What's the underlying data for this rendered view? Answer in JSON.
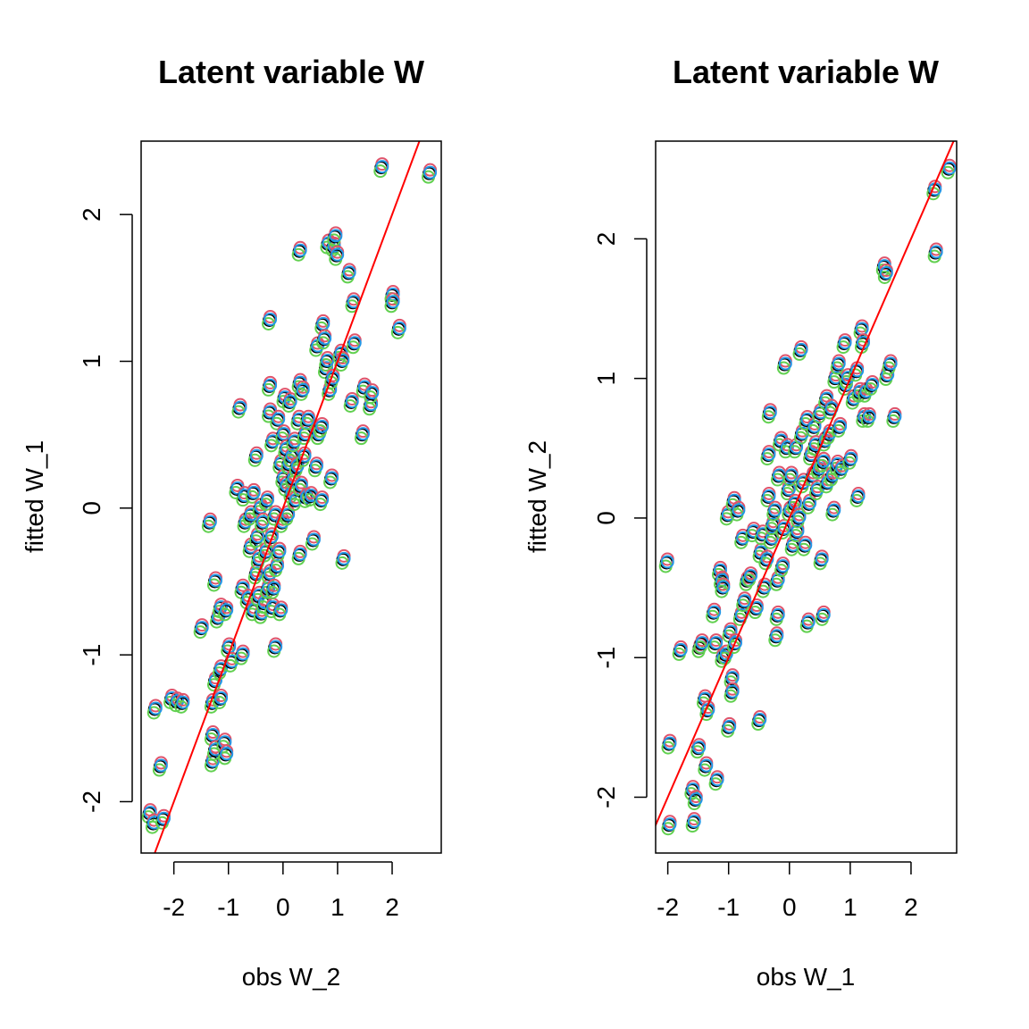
{
  "palette": [
    "#000000",
    "#DF536B",
    "#61D04F",
    "#2297E6"
  ],
  "fit_line_color": "#FF0000",
  "chart_data": [
    {
      "type": "scatter",
      "title": "Latent variable W",
      "xlabel": "obs W_2",
      "ylabel": "fitted W_1",
      "xlim": [
        -2.6,
        2.9
      ],
      "ylim": [
        -2.35,
        2.5
      ],
      "xticks": [
        -2,
        -1,
        0,
        1,
        2
      ],
      "yticks": [
        -2,
        -1,
        0,
        1,
        2
      ],
      "xtick_labels": [
        "-2",
        "-1",
        "0",
        "1",
        "2"
      ],
      "ytick_labels": [
        "-2",
        "-1",
        "0",
        "1",
        "2"
      ],
      "grid": false,
      "legend": "none",
      "reference_line": {
        "slope": 1.0,
        "intercept": 0.0
      },
      "points": [
        [
          -2.45,
          -2.08
        ],
        [
          -2.38,
          -2.15
        ],
        [
          -2.35,
          -1.37
        ],
        [
          -2.25,
          -1.76
        ],
        [
          -2.2,
          -2.12
        ],
        [
          -2.05,
          -1.3
        ],
        [
          -1.95,
          -1.32
        ],
        [
          -1.85,
          -1.33
        ],
        [
          -1.5,
          -0.82
        ],
        [
          -1.35,
          -0.1
        ],
        [
          -1.3,
          -1.33
        ],
        [
          -1.3,
          -1.55
        ],
        [
          -1.3,
          -1.73
        ],
        [
          -1.25,
          -1.18
        ],
        [
          -1.25,
          -1.65
        ],
        [
          -1.25,
          -0.5
        ],
        [
          -1.2,
          -0.75
        ],
        [
          -1.15,
          -0.68
        ],
        [
          -1.15,
          -1.3
        ],
        [
          -1.15,
          -1.1
        ],
        [
          -1.08,
          -1.6
        ],
        [
          -1.05,
          -1.68
        ],
        [
          -1.05,
          -0.7
        ],
        [
          -1.0,
          -0.95
        ],
        [
          -0.95,
          -1.05
        ],
        [
          -0.85,
          0.13
        ],
        [
          -0.8,
          0.68
        ],
        [
          -0.75,
          -1.0
        ],
        [
          -0.75,
          -0.55
        ],
        [
          -0.72,
          0.08
        ],
        [
          -0.7,
          -0.1
        ],
        [
          -0.65,
          -0.62
        ],
        [
          -0.6,
          -0.27
        ],
        [
          -0.6,
          -0.05
        ],
        [
          -0.55,
          0.1
        ],
        [
          -0.55,
          -0.7
        ],
        [
          -0.5,
          -0.45
        ],
        [
          -0.5,
          0.35
        ],
        [
          -0.48,
          -0.2
        ],
        [
          -0.45,
          -0.6
        ],
        [
          -0.45,
          -0.35
        ],
        [
          -0.42,
          0.0
        ],
        [
          -0.4,
          -0.72
        ],
        [
          -0.38,
          -0.1
        ],
        [
          -0.35,
          -0.65
        ],
        [
          -0.32,
          -0.3
        ],
        [
          -0.3,
          0.05
        ],
        [
          -0.28,
          -0.55
        ],
        [
          -0.25,
          0.83
        ],
        [
          -0.25,
          1.28
        ],
        [
          -0.25,
          0.65
        ],
        [
          -0.25,
          -0.45
        ],
        [
          -0.22,
          -0.2
        ],
        [
          -0.2,
          0.45
        ],
        [
          -0.2,
          -0.68
        ],
        [
          -0.18,
          -0.55
        ],
        [
          -0.15,
          -0.05
        ],
        [
          -0.15,
          -0.95
        ],
        [
          -0.12,
          -0.4
        ],
        [
          -0.1,
          0.6
        ],
        [
          -0.08,
          -0.3
        ],
        [
          -0.05,
          -0.7
        ],
        [
          -0.05,
          0.3
        ],
        [
          -0.02,
          -0.1
        ],
        [
          0.0,
          0.2
        ],
        [
          0.0,
          0.5
        ],
        [
          0.02,
          0.75
        ],
        [
          0.05,
          0.15
        ],
        [
          0.05,
          0.4
        ],
        [
          0.08,
          -0.05
        ],
        [
          0.1,
          0.3
        ],
        [
          0.12,
          0.72
        ],
        [
          0.15,
          0.1
        ],
        [
          0.15,
          0.35
        ],
        [
          0.18,
          0.2
        ],
        [
          0.2,
          0.45
        ],
        [
          0.22,
          0.05
        ],
        [
          0.25,
          0.28
        ],
        [
          0.28,
          0.6
        ],
        [
          0.3,
          0.85
        ],
        [
          0.3,
          1.75
        ],
        [
          0.3,
          -0.32
        ],
        [
          0.32,
          0.15
        ],
        [
          0.35,
          0.8
        ],
        [
          0.38,
          0.35
        ],
        [
          0.4,
          0.5
        ],
        [
          0.42,
          0.07
        ],
        [
          0.45,
          0.6
        ],
        [
          0.5,
          0.08
        ],
        [
          0.55,
          -0.22
        ],
        [
          0.6,
          0.28
        ],
        [
          0.62,
          1.1
        ],
        [
          0.65,
          0.5
        ],
        [
          0.7,
          0.55
        ],
        [
          0.7,
          0.05
        ],
        [
          0.72,
          1.25
        ],
        [
          0.75,
          1.15
        ],
        [
          0.78,
          0.95
        ],
        [
          0.8,
          1.0
        ],
        [
          0.82,
          1.8
        ],
        [
          0.85,
          0.8
        ],
        [
          0.88,
          0.2
        ],
        [
          0.9,
          0.88
        ],
        [
          0.92,
          1.78
        ],
        [
          0.95,
          1.85
        ],
        [
          0.98,
          1.72
        ],
        [
          1.05,
          1.05
        ],
        [
          1.08,
          1.0
        ],
        [
          1.1,
          -0.35
        ],
        [
          1.2,
          1.6
        ],
        [
          1.25,
          0.72
        ],
        [
          1.28,
          1.4
        ],
        [
          1.3,
          1.12
        ],
        [
          1.45,
          0.5
        ],
        [
          1.48,
          0.82
        ],
        [
          1.6,
          0.7
        ],
        [
          1.62,
          0.78
        ],
        [
          1.8,
          2.32
        ],
        [
          2.0,
          1.45
        ],
        [
          2.0,
          1.4
        ],
        [
          2.12,
          1.22
        ],
        [
          2.68,
          2.28
        ]
      ]
    },
    {
      "type": "scatter",
      "title": "Latent variable W",
      "xlabel": "obs W_1",
      "ylabel": "fitted W_2",
      "xlim": [
        -2.2,
        2.75
      ],
      "ylim": [
        -2.4,
        2.7
      ],
      "xticks": [
        -2,
        -1,
        0,
        1,
        2
      ],
      "yticks": [
        -2,
        -1,
        0,
        1,
        2
      ],
      "xtick_labels": [
        "-2",
        "-1",
        "0",
        "1",
        "2"
      ],
      "ytick_labels": [
        "-2",
        "-1",
        "0",
        "1",
        "2"
      ],
      "grid": false,
      "legend": "none",
      "reference_line": {
        "slope": 1.0,
        "intercept": 0.0
      },
      "points": [
        [
          -2.02,
          -0.32
        ],
        [
          -1.98,
          -1.62
        ],
        [
          -1.98,
          -2.2
        ],
        [
          -1.8,
          -0.95
        ],
        [
          -1.6,
          -1.95
        ],
        [
          -1.58,
          -2.18
        ],
        [
          -1.55,
          -2.02
        ],
        [
          -1.5,
          -1.65
        ],
        [
          -1.48,
          -0.93
        ],
        [
          -1.45,
          -0.9
        ],
        [
          -1.4,
          -1.3
        ],
        [
          -1.38,
          -1.78
        ],
        [
          -1.35,
          -1.38
        ],
        [
          -1.25,
          -0.68
        ],
        [
          -1.22,
          -0.9
        ],
        [
          -1.2,
          -1.88
        ],
        [
          -1.15,
          -0.38
        ],
        [
          -1.12,
          -0.45
        ],
        [
          -1.1,
          -0.5
        ],
        [
          -1.1,
          -1.0
        ],
        [
          -1.05,
          -0.98
        ],
        [
          -1.02,
          0.02
        ],
        [
          -1.0,
          -1.5
        ],
        [
          -0.98,
          -0.82
        ],
        [
          -0.95,
          -1.15
        ],
        [
          -0.95,
          -1.25
        ],
        [
          -0.92,
          0.12
        ],
        [
          -0.9,
          -0.9
        ],
        [
          -0.85,
          0.05
        ],
        [
          -0.8,
          -0.7
        ],
        [
          -0.78,
          -0.15
        ],
        [
          -0.75,
          -0.6
        ],
        [
          -0.7,
          -0.45
        ],
        [
          -0.65,
          -0.42
        ],
        [
          -0.6,
          -0.1
        ],
        [
          -0.55,
          -0.65
        ],
        [
          -0.5,
          -1.45
        ],
        [
          -0.48,
          -0.25
        ],
        [
          -0.45,
          -0.12
        ],
        [
          -0.42,
          -0.5
        ],
        [
          -0.38,
          -0.3
        ],
        [
          -0.35,
          0.45
        ],
        [
          -0.35,
          0.15
        ],
        [
          -0.33,
          0.75
        ],
        [
          -0.3,
          -0.15
        ],
        [
          -0.28,
          -0.05
        ],
        [
          -0.25,
          0.05
        ],
        [
          -0.22,
          -0.85
        ],
        [
          -0.2,
          -0.7
        ],
        [
          -0.2,
          -0.45
        ],
        [
          -0.18,
          0.3
        ],
        [
          -0.15,
          0.55
        ],
        [
          -0.12,
          -0.35
        ],
        [
          -0.1,
          -0.08
        ],
        [
          -0.08,
          1.1
        ],
        [
          -0.05,
          0.5
        ],
        [
          -0.02,
          0.2
        ],
        [
          0.0,
          0.05
        ],
        [
          0.02,
          0.3
        ],
        [
          0.05,
          -0.2
        ],
        [
          0.08,
          0.1
        ],
        [
          0.1,
          0.5
        ],
        [
          0.12,
          -0.1
        ],
        [
          0.15,
          0.0
        ],
        [
          0.18,
          1.2
        ],
        [
          0.2,
          0.6
        ],
        [
          0.22,
          0.25
        ],
        [
          0.25,
          -0.2
        ],
        [
          0.28,
          0.7
        ],
        [
          0.3,
          -0.75
        ],
        [
          0.32,
          0.1
        ],
        [
          0.35,
          0.45
        ],
        [
          0.38,
          0.3
        ],
        [
          0.4,
          0.65
        ],
        [
          0.42,
          0.52
        ],
        [
          0.45,
          0.2
        ],
        [
          0.48,
          0.35
        ],
        [
          0.5,
          0.75
        ],
        [
          0.52,
          -0.3
        ],
        [
          0.55,
          -0.7
        ],
        [
          0.55,
          0.4
        ],
        [
          0.58,
          0.55
        ],
        [
          0.6,
          0.85
        ],
        [
          0.62,
          0.25
        ],
        [
          0.65,
          0.6
        ],
        [
          0.68,
          0.78
        ],
        [
          0.7,
          0.3
        ],
        [
          0.72,
          0.05
        ],
        [
          0.75,
          1.0
        ],
        [
          0.78,
          0.38
        ],
        [
          0.8,
          1.1
        ],
        [
          0.82,
          0.65
        ],
        [
          0.85,
          0.35
        ],
        [
          0.9,
          1.25
        ],
        [
          0.92,
          0.95
        ],
        [
          0.95,
          1.0
        ],
        [
          1.0,
          0.42
        ],
        [
          1.05,
          0.85
        ],
        [
          1.1,
          1.05
        ],
        [
          1.12,
          0.15
        ],
        [
          1.15,
          0.9
        ],
        [
          1.18,
          1.35
        ],
        [
          1.2,
          1.25
        ],
        [
          1.22,
          0.72
        ],
        [
          1.25,
          0.9
        ],
        [
          1.3,
          0.72
        ],
        [
          1.35,
          0.95
        ],
        [
          1.55,
          1.8
        ],
        [
          1.58,
          1.75
        ],
        [
          1.6,
          1.02
        ],
        [
          1.65,
          1.1
        ],
        [
          1.72,
          0.72
        ],
        [
          2.38,
          2.35
        ],
        [
          2.4,
          1.9
        ],
        [
          2.62,
          2.5
        ]
      ]
    }
  ]
}
